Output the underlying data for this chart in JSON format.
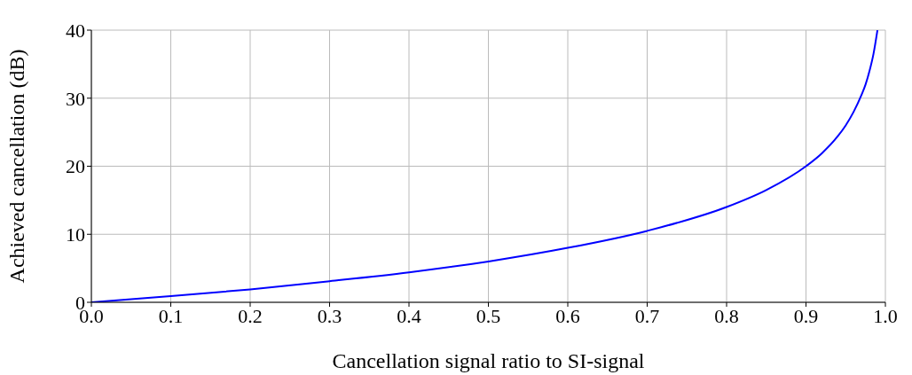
{
  "chart_data": {
    "type": "line",
    "xlabel": "Cancellation signal ratio to SI-signal",
    "ylabel": "Achieved cancellation (dB)",
    "x": [
      0,
      0.1,
      0.2,
      0.3,
      0.4,
      0.5,
      0.6,
      0.7,
      0.8,
      0.85,
      0.9,
      0.92,
      0.94,
      0.95,
      0.96,
      0.97,
      0.975,
      0.98,
      0.985,
      0.99
    ],
    "series": [
      {
        "color": "#0000ff",
        "values": [
          0,
          0.9,
          1.9,
          3.1,
          4.4,
          6,
          8,
          10.5,
          14,
          16.5,
          20,
          21.9,
          24.4,
          26,
          28,
          30.5,
          32,
          34,
          36.5,
          40
        ]
      }
    ],
    "xlim": [
      0,
      1
    ],
    "xticks": [
      {
        "value": 0,
        "label": "0.0"
      },
      0.1,
      0.2,
      0.3,
      0.4,
      0.5,
      0.6,
      0.7,
      0.8,
      0.9,
      {
        "value": 1,
        "label": "1.0"
      }
    ],
    "ylim": [
      0,
      40
    ],
    "yticks": [
      0,
      10,
      20,
      30,
      40
    ],
    "grid": true,
    "marker": "none",
    "line_style": "solid"
  }
}
